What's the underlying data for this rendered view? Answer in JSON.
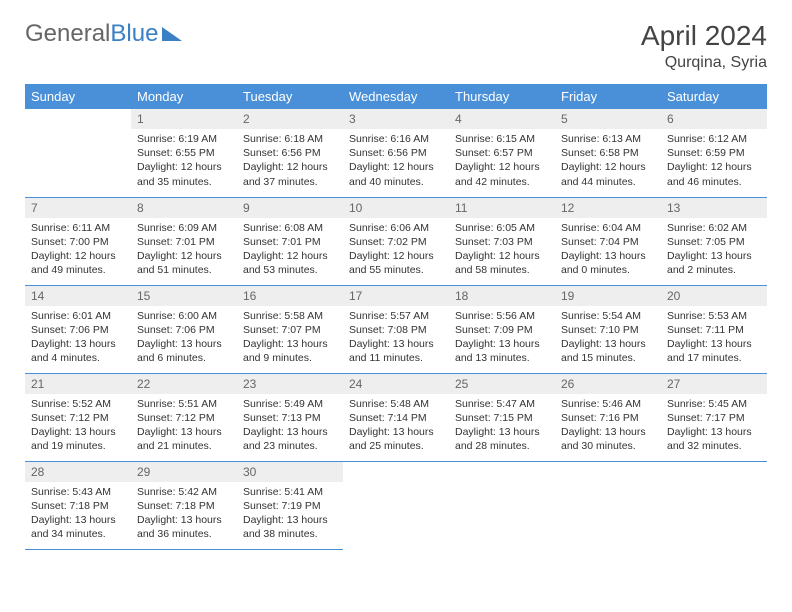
{
  "logo": {
    "part1": "General",
    "part2": "Blue"
  },
  "title": "April 2024",
  "location": "Qurqina, Syria",
  "weekdays": [
    "Sunday",
    "Monday",
    "Tuesday",
    "Wednesday",
    "Thursday",
    "Friday",
    "Saturday"
  ],
  "colors": {
    "header_bg": "#4a90d9",
    "header_fg": "#ffffff",
    "daynum_bg": "#eeeeee",
    "border": "#4a90d9",
    "logo_accent": "#3b7fc4"
  },
  "fonts": {
    "title_size": 28,
    "location_size": 16,
    "weekday_size": 13,
    "daynum_size": 12,
    "body_size": 10.5
  },
  "start_offset": 1,
  "days": [
    {
      "n": 1,
      "sr": "6:19 AM",
      "ss": "6:55 PM",
      "dl": "12 hours and 35 minutes."
    },
    {
      "n": 2,
      "sr": "6:18 AM",
      "ss": "6:56 PM",
      "dl": "12 hours and 37 minutes."
    },
    {
      "n": 3,
      "sr": "6:16 AM",
      "ss": "6:56 PM",
      "dl": "12 hours and 40 minutes."
    },
    {
      "n": 4,
      "sr": "6:15 AM",
      "ss": "6:57 PM",
      "dl": "12 hours and 42 minutes."
    },
    {
      "n": 5,
      "sr": "6:13 AM",
      "ss": "6:58 PM",
      "dl": "12 hours and 44 minutes."
    },
    {
      "n": 6,
      "sr": "6:12 AM",
      "ss": "6:59 PM",
      "dl": "12 hours and 46 minutes."
    },
    {
      "n": 7,
      "sr": "6:11 AM",
      "ss": "7:00 PM",
      "dl": "12 hours and 49 minutes."
    },
    {
      "n": 8,
      "sr": "6:09 AM",
      "ss": "7:01 PM",
      "dl": "12 hours and 51 minutes."
    },
    {
      "n": 9,
      "sr": "6:08 AM",
      "ss": "7:01 PM",
      "dl": "12 hours and 53 minutes."
    },
    {
      "n": 10,
      "sr": "6:06 AM",
      "ss": "7:02 PM",
      "dl": "12 hours and 55 minutes."
    },
    {
      "n": 11,
      "sr": "6:05 AM",
      "ss": "7:03 PM",
      "dl": "12 hours and 58 minutes."
    },
    {
      "n": 12,
      "sr": "6:04 AM",
      "ss": "7:04 PM",
      "dl": "13 hours and 0 minutes."
    },
    {
      "n": 13,
      "sr": "6:02 AM",
      "ss": "7:05 PM",
      "dl": "13 hours and 2 minutes."
    },
    {
      "n": 14,
      "sr": "6:01 AM",
      "ss": "7:06 PM",
      "dl": "13 hours and 4 minutes."
    },
    {
      "n": 15,
      "sr": "6:00 AM",
      "ss": "7:06 PM",
      "dl": "13 hours and 6 minutes."
    },
    {
      "n": 16,
      "sr": "5:58 AM",
      "ss": "7:07 PM",
      "dl": "13 hours and 9 minutes."
    },
    {
      "n": 17,
      "sr": "5:57 AM",
      "ss": "7:08 PM",
      "dl": "13 hours and 11 minutes."
    },
    {
      "n": 18,
      "sr": "5:56 AM",
      "ss": "7:09 PM",
      "dl": "13 hours and 13 minutes."
    },
    {
      "n": 19,
      "sr": "5:54 AM",
      "ss": "7:10 PM",
      "dl": "13 hours and 15 minutes."
    },
    {
      "n": 20,
      "sr": "5:53 AM",
      "ss": "7:11 PM",
      "dl": "13 hours and 17 minutes."
    },
    {
      "n": 21,
      "sr": "5:52 AM",
      "ss": "7:12 PM",
      "dl": "13 hours and 19 minutes."
    },
    {
      "n": 22,
      "sr": "5:51 AM",
      "ss": "7:12 PM",
      "dl": "13 hours and 21 minutes."
    },
    {
      "n": 23,
      "sr": "5:49 AM",
      "ss": "7:13 PM",
      "dl": "13 hours and 23 minutes."
    },
    {
      "n": 24,
      "sr": "5:48 AM",
      "ss": "7:14 PM",
      "dl": "13 hours and 25 minutes."
    },
    {
      "n": 25,
      "sr": "5:47 AM",
      "ss": "7:15 PM",
      "dl": "13 hours and 28 minutes."
    },
    {
      "n": 26,
      "sr": "5:46 AM",
      "ss": "7:16 PM",
      "dl": "13 hours and 30 minutes."
    },
    {
      "n": 27,
      "sr": "5:45 AM",
      "ss": "7:17 PM",
      "dl": "13 hours and 32 minutes."
    },
    {
      "n": 28,
      "sr": "5:43 AM",
      "ss": "7:18 PM",
      "dl": "13 hours and 34 minutes."
    },
    {
      "n": 29,
      "sr": "5:42 AM",
      "ss": "7:18 PM",
      "dl": "13 hours and 36 minutes."
    },
    {
      "n": 30,
      "sr": "5:41 AM",
      "ss": "7:19 PM",
      "dl": "13 hours and 38 minutes."
    }
  ],
  "labels": {
    "sunrise": "Sunrise:",
    "sunset": "Sunset:",
    "daylight": "Daylight:"
  }
}
